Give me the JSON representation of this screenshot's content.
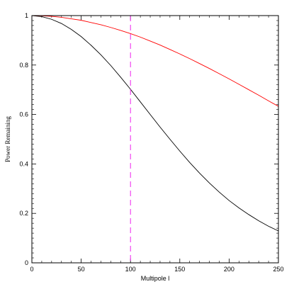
{
  "chart_data": {
    "type": "line",
    "title": "",
    "xlabel": "Multipole l",
    "ylabel": "Power Remaining",
    "xlim": [
      0,
      250
    ],
    "ylim": [
      0,
      1
    ],
    "x_ticks": [
      0,
      50,
      100,
      150,
      200,
      250
    ],
    "y_ticks": [
      0,
      0.2,
      0.4,
      0.6,
      0.8,
      1
    ],
    "x_tick_labels": [
      "0",
      "50",
      "100",
      "150",
      "200",
      "250"
    ],
    "y_tick_labels": [
      "0",
      "0.2",
      "0.4",
      "0.6",
      "0.8",
      "1"
    ],
    "grid": false,
    "series": [
      {
        "color": "#000000",
        "x": [
          0,
          10,
          20,
          30,
          40,
          50,
          60,
          70,
          80,
          90,
          100,
          110,
          120,
          130,
          140,
          150,
          160,
          170,
          180,
          190,
          200,
          210,
          220,
          230,
          240,
          250
        ],
        "y": [
          1.0,
          0.996,
          0.985,
          0.968,
          0.944,
          0.915,
          0.88,
          0.841,
          0.798,
          0.751,
          0.702,
          0.651,
          0.6,
          0.549,
          0.5,
          0.452,
          0.406,
          0.363,
          0.323,
          0.286,
          0.252,
          0.222,
          0.195,
          0.17,
          0.148,
          0.129
        ]
      },
      {
        "color": "#ff0000",
        "x": [
          0,
          10,
          20,
          30,
          40,
          50,
          60,
          70,
          80,
          90,
          100,
          110,
          120,
          130,
          140,
          150,
          160,
          170,
          180,
          190,
          200,
          210,
          220,
          230,
          240,
          250
        ],
        "y": [
          1.0,
          0.999,
          0.997,
          0.993,
          0.987,
          0.981,
          0.972,
          0.963,
          0.952,
          0.94,
          0.927,
          0.913,
          0.897,
          0.881,
          0.863,
          0.845,
          0.826,
          0.806,
          0.786,
          0.765,
          0.744,
          0.722,
          0.7,
          0.678,
          0.655,
          0.633
        ]
      }
    ],
    "vline": {
      "x": 100,
      "color": "#ee22ee",
      "style": "dashed"
    }
  }
}
